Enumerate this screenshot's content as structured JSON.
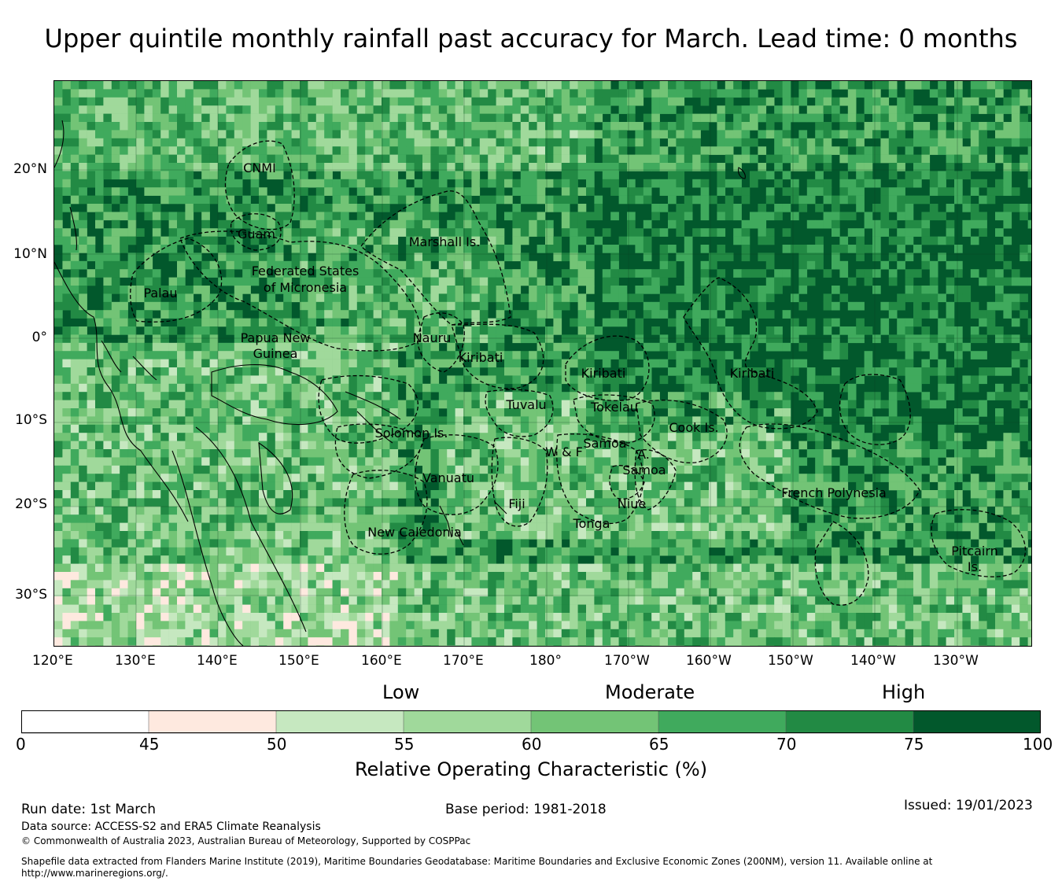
{
  "title": "Upper quintile monthly rainfall past accuracy for March. Lead time: 0 months",
  "map": {
    "lat_ticks": [
      "20°N",
      "10°N",
      "0°",
      "10°S",
      "20°S",
      "30°S"
    ],
    "lon_ticks": [
      "120°E",
      "130°E",
      "140°E",
      "150°E",
      "160°E",
      "170°E",
      "180°",
      "170°W",
      "160°W",
      "150°W",
      "140°W",
      "130°W"
    ],
    "countries": [
      "CNMI",
      "Guam",
      "Marshall Is.",
      "Palau",
      "Federated States",
      "of Micronesia",
      "Papua New",
      "Guinea",
      "Nauru",
      "Kiribati",
      "Kiribati",
      "Kiribati",
      "Tuvalu",
      "Tokelau",
      "Cook Is.",
      "Solomon Is.",
      "W & F",
      "Samoa",
      "A.",
      "Samoa",
      "Vanuatu",
      "Fiji",
      "Niue",
      "Tonga",
      "French Polynesia",
      "New Caledonia",
      "Pitcairn",
      "Is."
    ]
  },
  "colorbar": {
    "categories": [
      "Low",
      "Moderate",
      "High"
    ],
    "bounds": [
      "0",
      "45",
      "50",
      "55",
      "60",
      "65",
      "70",
      "75",
      "100"
    ],
    "colors": [
      "#ffffff",
      "#fee9df",
      "#c6e8c0",
      "#a0d99b",
      "#73c476",
      "#40aa5d",
      "#228a44",
      "#02582c"
    ],
    "title": "Relative Operating Characteristic (%)"
  },
  "footer": {
    "run_date": "Run date: 1st March",
    "base_period": "Base period: 1981-2018",
    "issued": "Issued: 19/01/2023",
    "data_source": "Data source: ACCESS-S2 and ERA5 Climate Reanalysis",
    "copyright": "© Commonwealth of Australia 2023, Australian Bureau of Meteorology, Supported by COSPPac",
    "shapefile_line1": "Shapefile data extracted from Flanders Marine Institute (2019), Maritime Boundaries Geodatabase: Maritime Boundaries and Exclusive Economic Zones (200NM), version 11. Available online at",
    "shapefile_line2": "http://www.marineregions.org/."
  }
}
